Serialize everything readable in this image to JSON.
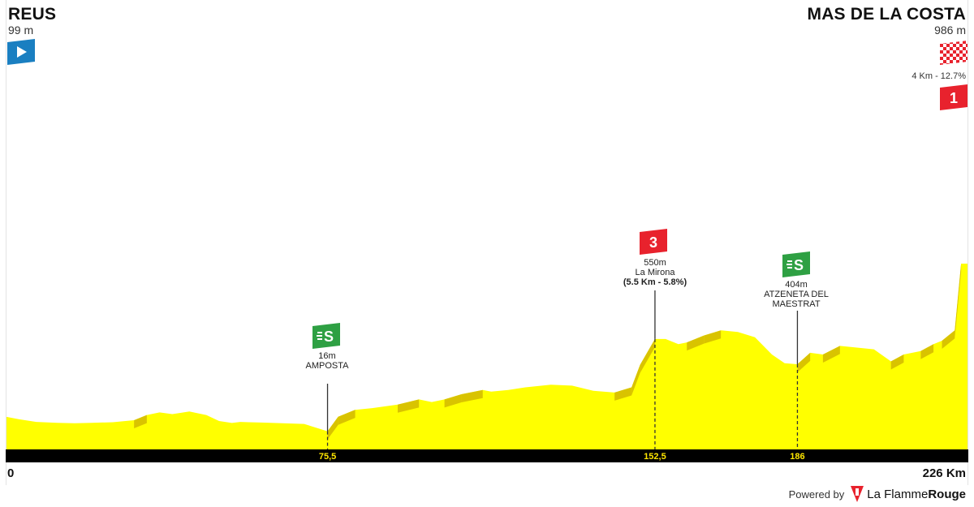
{
  "start": {
    "name": "REUS",
    "altitude": "99 m",
    "flag_icon": "start-arrow-icon",
    "flag_color": "#1a7fc1"
  },
  "finish": {
    "name": "MAS DE LA COSTA",
    "altitude": "986 m",
    "flag_icon": "checkered-finish-icon",
    "climb_text": "4 Km - 12.7%",
    "climb_category": "1",
    "climb_color": "#e8222d"
  },
  "climbs": [
    {
      "km": 152.5,
      "altitude_text": "550m",
      "name": "La Mirona",
      "detail": "(5.5 Km - 5.8%)",
      "category": "3",
      "color": "#e8222d"
    }
  ],
  "sprints": [
    {
      "km": 75.5,
      "altitude_text": "16m",
      "name": "AMPOSTA",
      "icon": "S",
      "color": "#2ea043"
    },
    {
      "km": 186,
      "altitude_text": "404m",
      "name": "ATZENETA DEL MAESTRAT",
      "name_lines": [
        "ATZENETA DEL",
        "MAESTRAT"
      ],
      "icon": "S",
      "color": "#2ea043"
    }
  ],
  "axis": {
    "start_label": "0",
    "end_label": "226 Km",
    "markers": [
      "75,5",
      "152,5",
      "186"
    ]
  },
  "footer": {
    "powered_by": "Powered by",
    "brand_plain": "La Flamme",
    "brand_bold": "Rouge"
  },
  "colors": {
    "profile_fill": "#ffff00",
    "profile_shade": "#d9c300",
    "axis_band": "#000000",
    "marker_text": "#ffe600"
  },
  "chart_data": {
    "type": "area",
    "xlabel": "",
    "ylabel": "",
    "xlim": [
      0,
      226
    ],
    "x": [
      0,
      3,
      7,
      12,
      16,
      20,
      25,
      30,
      33,
      36,
      39,
      43,
      47,
      50,
      53,
      55,
      57,
      60,
      65,
      70,
      75.5,
      78,
      82,
      86,
      92,
      97,
      100,
      103,
      107,
      112,
      114,
      118,
      122,
      128,
      133,
      138,
      143,
      147,
      149,
      152.5,
      155,
      158,
      160,
      164,
      168,
      172,
      176,
      180,
      183,
      186,
      189,
      192,
      196,
      200,
      204,
      208,
      211,
      215,
      218,
      220,
      223,
      224.5,
      226
    ],
    "values": [
      99,
      85,
      70,
      65,
      62,
      65,
      68,
      80,
      110,
      125,
      115,
      130,
      110,
      75,
      64,
      70,
      68,
      66,
      62,
      58,
      16,
      100,
      140,
      150,
      170,
      200,
      185,
      200,
      230,
      255,
      245,
      255,
      270,
      285,
      280,
      250,
      240,
      270,
      400,
      550,
      550,
      520,
      530,
      570,
      600,
      590,
      560,
      460,
      410,
      404,
      470,
      460,
      510,
      500,
      490,
      420,
      460,
      480,
      520,
      540,
      600,
      986,
      986
    ]
  }
}
